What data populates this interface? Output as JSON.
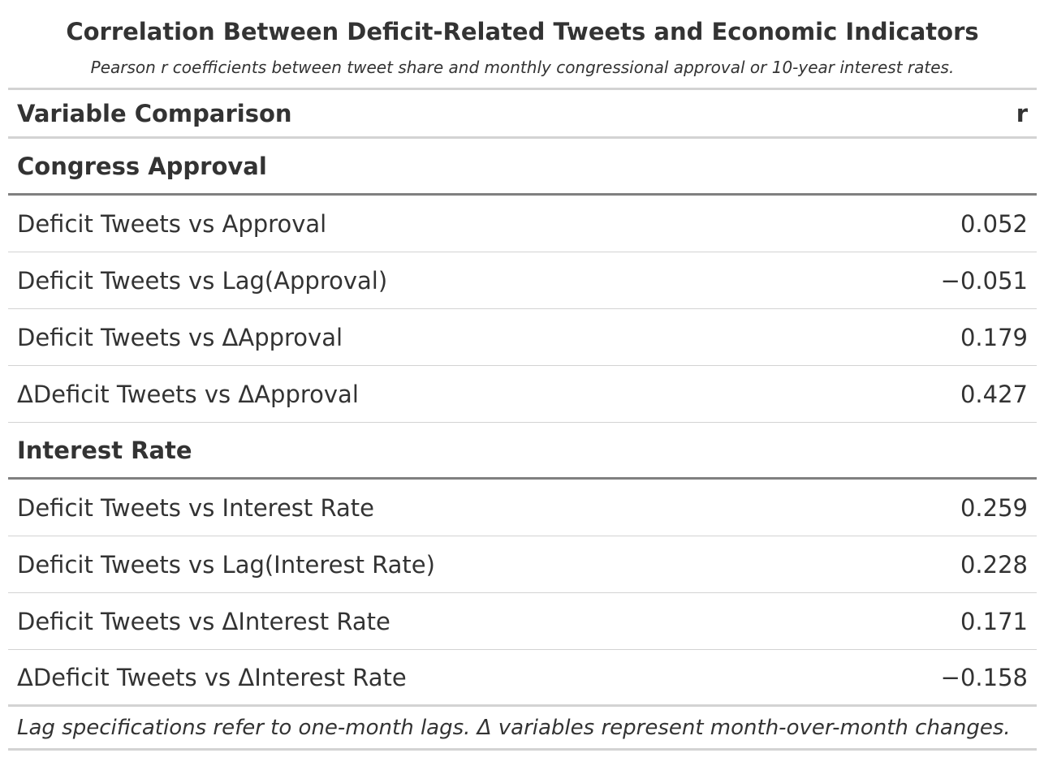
{
  "title": "Correlation Between Deficit-Related Tweets and Economic Indicators",
  "subtitle": "Pearson r coefficients between tweet share and monthly congressional approval or 10-year interest rates.",
  "columns": {
    "label": "Variable Comparison",
    "value": "r"
  },
  "groups": [
    {
      "name": "Congress Approval",
      "rows": [
        {
          "label": "Deficit Tweets vs Approval",
          "r": "0.052"
        },
        {
          "label": "Deficit Tweets vs Lag(Approval)",
          "r": "−0.051"
        },
        {
          "label": "Deficit Tweets vs ΔApproval",
          "r": "0.179"
        },
        {
          "label": "ΔDeficit Tweets vs ΔApproval",
          "r": "0.427"
        }
      ]
    },
    {
      "name": "Interest Rate",
      "rows": [
        {
          "label": "Deficit Tweets vs Interest Rate",
          "r": "0.259"
        },
        {
          "label": "Deficit Tweets vs Lag(Interest Rate)",
          "r": "0.228"
        },
        {
          "label": "Deficit Tweets vs ΔInterest Rate",
          "r": "0.171"
        },
        {
          "label": "ΔDeficit Tweets vs ΔInterest Rate",
          "r": "−0.158"
        }
      ]
    }
  ],
  "footnote": "Lag specifications refer to one-month lags. Δ variables represent month-over-month changes."
}
